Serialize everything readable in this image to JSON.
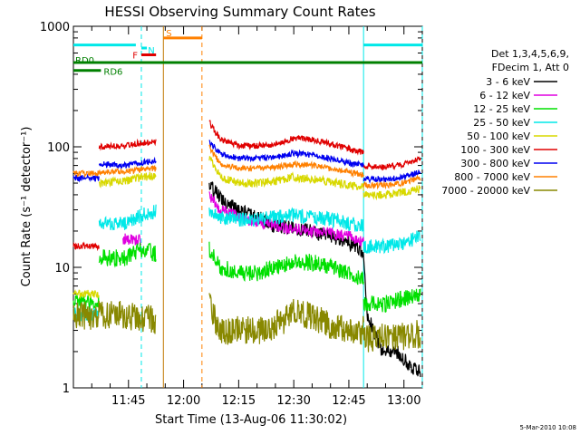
{
  "page": {
    "footer_date": "5-Mar-2010 10:08"
  },
  "chart_data": {
    "type": "line",
    "title": "HESSI Observing Summary Count Rates",
    "xlabel": "Start Time (13-Aug-06 11:30:02)",
    "ylabel": "Count Rate (s⁻¹ detector⁻¹)",
    "ylog": true,
    "ylim": [
      1,
      1000
    ],
    "xlim_minutes": [
      0,
      95
    ],
    "x_ticks": [
      {
        "min": 15,
        "label": "11:45"
      },
      {
        "min": 30,
        "label": "12:00"
      },
      {
        "min": 45,
        "label": "12:15"
      },
      {
        "min": 60,
        "label": "12:30"
      },
      {
        "min": 75,
        "label": "12:45"
      },
      {
        "min": 90,
        "label": "13:00"
      }
    ],
    "y_ticks": [
      {
        "v": 1,
        "label": "1"
      },
      {
        "v": 10,
        "label": "10"
      },
      {
        "v": 100,
        "label": "100"
      },
      {
        "v": 1000,
        "label": "1000"
      }
    ],
    "legend": {
      "position": "right",
      "header": [
        "Det 1,3,4,5,6,9,",
        "FDecim 1, Att 0"
      ],
      "entries": [
        {
          "label": "3 - 6 keV",
          "color": "#000000"
        },
        {
          "label": "6 - 12 keV",
          "color": "#e000e0"
        },
        {
          "label": "12 - 25 keV",
          "color": "#00e000"
        },
        {
          "label": "25 - 50 keV",
          "color": "#00e8e8"
        },
        {
          "label": "50 - 100 keV",
          "color": "#d8d800"
        },
        {
          "label": "100 - 300 keV",
          "color": "#e00000"
        },
        {
          "label": "300 - 800 keV",
          "color": "#0000f0"
        },
        {
          "label": "800 - 7000 keV",
          "color": "#ff8000"
        },
        {
          "label": "7000 - 20000 keV",
          "color": "#888800"
        }
      ]
    },
    "flags": [
      {
        "label": "",
        "color": "#00e8e8",
        "y": 700,
        "segments": [
          [
            0,
            17
          ],
          [
            79,
            95
          ]
        ]
      },
      {
        "label": "S",
        "color": "#ff8000",
        "y": 800,
        "segments": [
          [
            24.5,
            35
          ]
        ]
      },
      {
        "label": "N",
        "color": "#00e8e8",
        "y": 660,
        "segments": [
          [
            18.5,
            20
          ]
        ]
      },
      {
        "label": "F",
        "color": "#e00000",
        "y": 580,
        "segments": [
          [
            18.5,
            22.5
          ]
        ]
      },
      {
        "label": "RD0",
        "color": "#008000",
        "y": 500,
        "segments": [
          [
            0,
            95
          ]
        ]
      },
      {
        "label": "RD6",
        "color": "#008000",
        "y": 430,
        "segments": [
          [
            0,
            7.5
          ]
        ]
      }
    ],
    "vlines": [
      {
        "min": 18.5,
        "color": "#00e8e8",
        "style": "dashed"
      },
      {
        "min": 24.5,
        "color": "#c07800",
        "style": "solid"
      },
      {
        "min": 35,
        "color": "#ff8000",
        "style": "dashed"
      },
      {
        "min": 79,
        "color": "#00e8e8",
        "style": "solid"
      },
      {
        "min": 95,
        "color": "#00e8e8",
        "style": "dashed"
      }
    ],
    "series": [
      {
        "name": "3 - 6 keV",
        "color": "#000000",
        "noise": 0.06,
        "segments": [
          [
            [
              37,
              48
            ],
            [
              40,
              38
            ],
            [
              45,
              30
            ],
            [
              50,
              26
            ],
            [
              55,
              22
            ],
            [
              60,
              21
            ],
            [
              65,
              20
            ],
            [
              70,
              18
            ],
            [
              75,
              16
            ],
            [
              78,
              14
            ],
            [
              79,
              12
            ],
            [
              80,
              4
            ],
            [
              84,
              2
            ],
            [
              88,
              2
            ],
            [
              92,
              1.5
            ],
            [
              94.5,
              1.4
            ]
          ]
        ]
      },
      {
        "name": "6 - 12 keV",
        "color": "#e000e0",
        "noise": 0.05,
        "segments": [
          [
            [
              13.5,
              17
            ],
            [
              18.5,
              17
            ]
          ],
          [
            [
              37,
              40
            ],
            [
              40,
              30
            ],
            [
              45,
              26
            ],
            [
              50,
              24
            ],
            [
              55,
              22
            ],
            [
              60,
              21
            ],
            [
              65,
              20
            ],
            [
              70,
              19
            ],
            [
              75,
              18
            ],
            [
              79,
              16
            ]
          ]
        ]
      },
      {
        "name": "12 - 25 keV",
        "color": "#00e000",
        "noise": 0.07,
        "segments": [
          [
            [
              0,
              5
            ],
            [
              7,
              5
            ]
          ],
          [
            [
              7,
              12
            ],
            [
              14,
              12
            ],
            [
              18.5,
              14
            ],
            [
              22.5,
              13
            ]
          ],
          [
            [
              37,
              14
            ],
            [
              40,
              10
            ],
            [
              45,
              9
            ],
            [
              50,
              9
            ],
            [
              55,
              10
            ],
            [
              60,
              11
            ],
            [
              65,
              11
            ],
            [
              70,
              10
            ],
            [
              75,
              9
            ],
            [
              79,
              8
            ]
          ],
          [
            [
              79,
              5
            ],
            [
              85,
              5
            ],
            [
              90,
              5.5
            ],
            [
              94.5,
              6
            ]
          ]
        ]
      },
      {
        "name": "25 - 50 keV",
        "color": "#00e8e8",
        "noise": 0.06,
        "segments": [
          [
            [
              0,
              4
            ],
            [
              7,
              4
            ]
          ],
          [
            [
              7,
              23
            ],
            [
              14,
              23
            ],
            [
              18.5,
              27
            ],
            [
              22.5,
              29
            ]
          ],
          [
            [
              37,
              30
            ],
            [
              40,
              26
            ],
            [
              45,
              25
            ],
            [
              50,
              25
            ],
            [
              55,
              26
            ],
            [
              60,
              27
            ],
            [
              65,
              26
            ],
            [
              70,
              25
            ],
            [
              75,
              23
            ],
            [
              79,
              22
            ]
          ],
          [
            [
              79,
              15
            ],
            [
              85,
              15
            ],
            [
              90,
              16
            ],
            [
              94.5,
              18
            ]
          ]
        ]
      },
      {
        "name": "50 - 100 keV",
        "color": "#d8d800",
        "noise": 0.035,
        "segments": [
          [
            [
              0,
              6
            ],
            [
              7,
              6
            ]
          ],
          [
            [
              7,
              50
            ],
            [
              14,
              52
            ],
            [
              18.5,
              56
            ],
            [
              22.5,
              58
            ]
          ],
          [
            [
              37,
              80
            ],
            [
              40,
              56
            ],
            [
              45,
              50
            ],
            [
              50,
              50
            ],
            [
              55,
              52
            ],
            [
              60,
              56
            ],
            [
              65,
              54
            ],
            [
              70,
              51
            ],
            [
              75,
              48
            ],
            [
              79,
              46
            ]
          ],
          [
            [
              79,
              40
            ],
            [
              85,
              40
            ],
            [
              90,
              42
            ],
            [
              94.5,
              45
            ]
          ]
        ]
      },
      {
        "name": "100 - 300 keV",
        "color": "#e00000",
        "noise": 0.025,
        "segments": [
          [
            [
              0,
              15
            ],
            [
              7,
              15
            ]
          ],
          [
            [
              7,
              100
            ],
            [
              14,
              102
            ],
            [
              18.5,
              108
            ],
            [
              22.5,
              110
            ]
          ],
          [
            [
              37,
              160
            ],
            [
              40,
              115
            ],
            [
              45,
              102
            ],
            [
              50,
              102
            ],
            [
              55,
              105
            ],
            [
              60,
              118
            ],
            [
              65,
              115
            ],
            [
              70,
              106
            ],
            [
              75,
              96
            ],
            [
              79,
              90
            ]
          ],
          [
            [
              79,
              68
            ],
            [
              85,
              68
            ],
            [
              90,
              72
            ],
            [
              94.5,
              80
            ]
          ]
        ]
      },
      {
        "name": "300 - 800 keV",
        "color": "#0000f0",
        "noise": 0.025,
        "segments": [
          [
            [
              0,
              55
            ],
            [
              7,
              55
            ]
          ],
          [
            [
              7,
              72
            ],
            [
              14,
              70
            ],
            [
              18.5,
              74
            ],
            [
              22.5,
              76
            ]
          ],
          [
            [
              37,
              110
            ],
            [
              40,
              88
            ],
            [
              45,
              80
            ],
            [
              50,
              80
            ],
            [
              55,
              82
            ],
            [
              60,
              88
            ],
            [
              65,
              86
            ],
            [
              70,
              80
            ],
            [
              75,
              73
            ],
            [
              79,
              70
            ]
          ],
          [
            [
              79,
              54
            ],
            [
              85,
              54
            ],
            [
              90,
              56
            ],
            [
              94.5,
              62
            ]
          ]
        ]
      },
      {
        "name": "800 - 7000 keV",
        "color": "#ff8000",
        "noise": 0.025,
        "segments": [
          [
            [
              0,
              60
            ],
            [
              7,
              60
            ]
          ],
          [
            [
              7,
              62
            ],
            [
              14,
              62
            ],
            [
              18.5,
              65
            ],
            [
              22.5,
              66
            ]
          ],
          [
            [
              37,
              100
            ],
            [
              40,
              72
            ],
            [
              45,
              66
            ],
            [
              50,
              66
            ],
            [
              55,
              68
            ],
            [
              60,
              72
            ],
            [
              65,
              70
            ],
            [
              70,
              66
            ],
            [
              75,
              62
            ],
            [
              79,
              58
            ]
          ],
          [
            [
              79,
              48
            ],
            [
              85,
              48
            ],
            [
              90,
              50
            ],
            [
              94.5,
              55
            ]
          ]
        ]
      },
      {
        "name": "7000 - 20000 keV",
        "color": "#888800",
        "noise": 0.12,
        "segments": [
          [
            [
              0,
              4
            ],
            [
              14,
              4
            ],
            [
              18.5,
              3.8
            ],
            [
              22.5,
              3.6
            ]
          ],
          [
            [
              37,
              8
            ],
            [
              38,
              4
            ],
            [
              40,
              3
            ],
            [
              50,
              3
            ],
            [
              55,
              3.3
            ],
            [
              60,
              4.2
            ],
            [
              65,
              4
            ],
            [
              70,
              3.3
            ],
            [
              75,
              3
            ],
            [
              79,
              3
            ]
          ],
          [
            [
              79,
              2.6
            ],
            [
              85,
              2.6
            ],
            [
              90,
              2.7
            ],
            [
              94.5,
              2.8
            ]
          ]
        ]
      }
    ]
  }
}
